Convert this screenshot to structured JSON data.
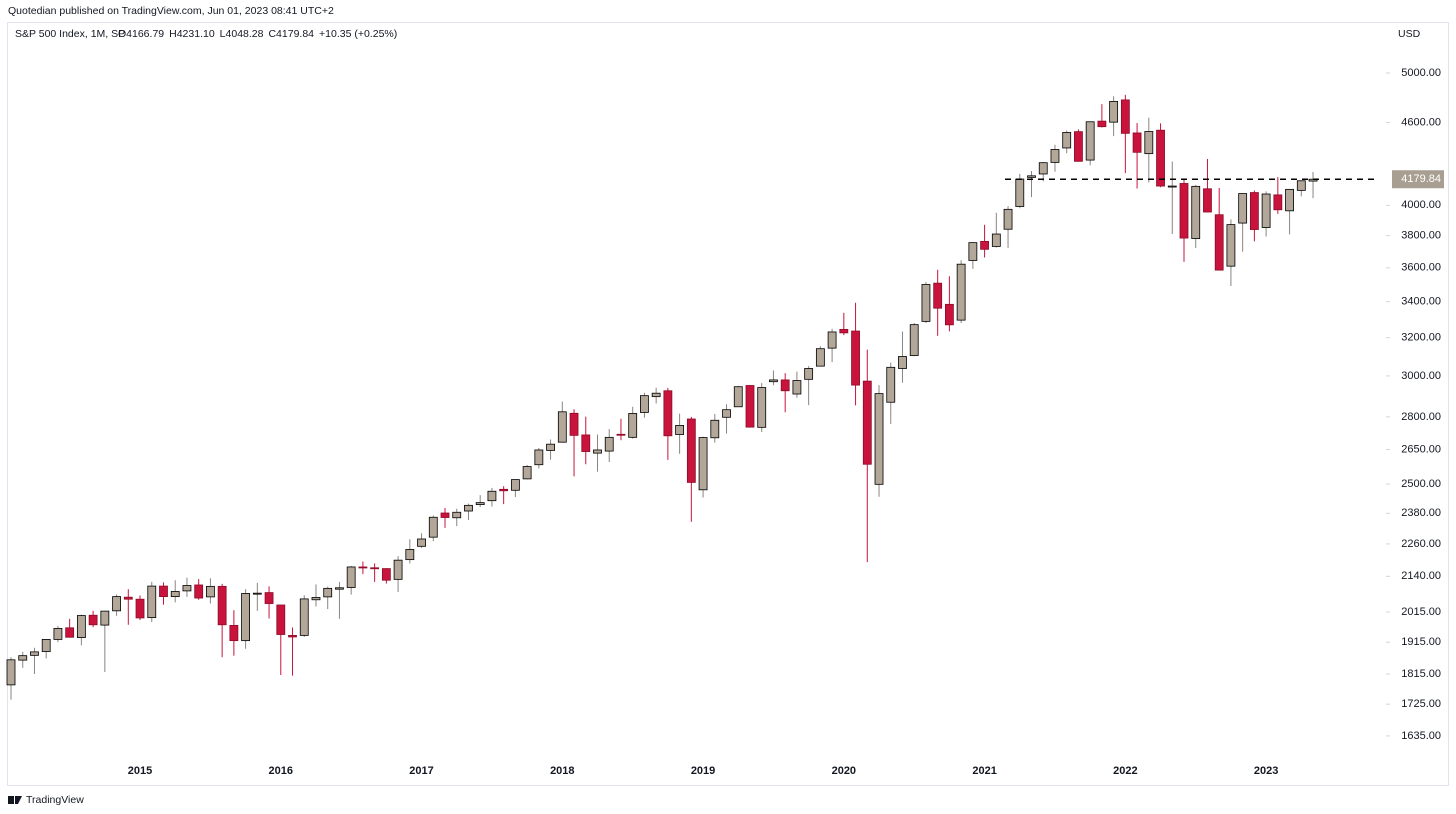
{
  "publisher": "Quotedian published on TradingView.com, Jun 01, 2023 08:41 UTC+2",
  "footer": "TradingView",
  "chart_data": {
    "type": "candlestick",
    "title": "S&P 500 Index, 1M, SP",
    "ohlc_text": [
      "O4166.79",
      "H4231.10",
      "L4048.28",
      "C4179.84",
      "+10.35 (+0.25%)"
    ],
    "currency": "USD",
    "log_scale": true,
    "up_color": "#b2a798",
    "down_color": "#c8143c",
    "hline": 4180,
    "last_price_label": "4179.84",
    "ylim": [
      1578,
      5467
    ],
    "yticks": [
      {
        "value": 1635,
        "label": "1635.00"
      },
      {
        "value": 1725,
        "label": "1725.00"
      },
      {
        "value": 1815,
        "label": "1815.00"
      },
      {
        "value": 1915,
        "label": "1915.00"
      },
      {
        "value": 2015,
        "label": "2015.00"
      },
      {
        "value": 2140,
        "label": "2140.00"
      },
      {
        "value": 2260,
        "label": "2260.00"
      },
      {
        "value": 2380,
        "label": "2380.00"
      },
      {
        "value": 2500,
        "label": "2500.00"
      },
      {
        "value": 2650,
        "label": "2650.00"
      },
      {
        "value": 2800,
        "label": "2800.00"
      },
      {
        "value": 3000,
        "label": "3000.00"
      },
      {
        "value": 3200,
        "label": "3200.00"
      },
      {
        "value": 3400,
        "label": "3400.00"
      },
      {
        "value": 3600,
        "label": "3600.00"
      },
      {
        "value": 3800,
        "label": "3800.00"
      },
      {
        "value": 4000,
        "label": "4000.00"
      },
      {
        "value": 4600,
        "label": "4600.00"
      },
      {
        "value": 5000,
        "label": "5000.00"
      }
    ],
    "categories": [
      null,
      null,
      null,
      null,
      null,
      null,
      null,
      null,
      null,
      null,
      null,
      "2015",
      null,
      null,
      null,
      null,
      null,
      null,
      null,
      null,
      null,
      null,
      null,
      "2016",
      null,
      null,
      null,
      null,
      null,
      null,
      null,
      null,
      null,
      null,
      null,
      "2017",
      null,
      null,
      null,
      null,
      null,
      null,
      null,
      null,
      null,
      null,
      null,
      "2018",
      null,
      null,
      null,
      null,
      null,
      null,
      null,
      null,
      null,
      null,
      null,
      "2019",
      null,
      null,
      null,
      null,
      null,
      null,
      null,
      null,
      null,
      null,
      null,
      "2020",
      null,
      null,
      null,
      null,
      null,
      null,
      null,
      null,
      null,
      null,
      null,
      "2021",
      null,
      null,
      null,
      null,
      null,
      null,
      null,
      null,
      null,
      null,
      null,
      "2022",
      null,
      null,
      null,
      null,
      null,
      null,
      null,
      null,
      null,
      null,
      null,
      "2023",
      null,
      null,
      null,
      null
    ],
    "open": [
      1782,
      1858,
      1873,
      1885,
      1924,
      1962,
      1930,
      2004,
      1971,
      2019,
      2066,
      2059,
      1996,
      2105,
      2068,
      2088,
      2109,
      2067,
      2104,
      1970,
      1920,
      2080,
      2082,
      2039,
      1937,
      1937,
      2057,
      2067,
      2094,
      2100,
      2174,
      2171,
      2168,
      2129,
      2201,
      2251,
      2286,
      2381,
      2362,
      2389,
      2415,
      2431,
      2478,
      2474,
      2522,
      2583,
      2646,
      2683,
      2817,
      2716,
      2634,
      2643,
      2719,
      2705,
      2821,
      2897,
      2926,
      2718,
      2790,
      2476,
      2703,
      2798,
      2848,
      2952,
      2751,
      2971,
      2980,
      2910,
      2983,
      3050,
      3144,
      3245,
      3236,
      2974,
      2499,
      2870,
      3038,
      3105,
      3289,
      3508,
      3385,
      3296,
      3645,
      3764,
      3732,
      3842,
      3992,
      4193,
      4217,
      4300,
      4406,
      4529,
      4317,
      4610,
      4602,
      4778,
      4519,
      4364,
      4540,
      4131,
      4150,
      3782,
      4113,
      3937,
      3610,
      3882,
      4087,
      3853,
      4071,
      3963,
      4102,
      4166.79
    ],
    "high": [
      1867,
      1884,
      1897,
      1925,
      1968,
      1992,
      2006,
      2019,
      2019,
      2076,
      2094,
      2072,
      2120,
      2118,
      2126,
      2135,
      2130,
      2133,
      2113,
      2021,
      2094,
      2117,
      2104,
      2039,
      1963,
      2073,
      2111,
      2103,
      2120,
      2178,
      2194,
      2187,
      2169,
      2214,
      2278,
      2301,
      2371,
      2401,
      2398,
      2419,
      2454,
      2484,
      2491,
      2520,
      2582,
      2657,
      2695,
      2873,
      2836,
      2801,
      2718,
      2743,
      2791,
      2848,
      2916,
      2941,
      2940,
      2815,
      2800,
      2708,
      2814,
      2860,
      2950,
      2955,
      2964,
      3028,
      3014,
      3022,
      3050,
      3154,
      3248,
      3337,
      3394,
      3136,
      2954,
      3068,
      3233,
      3280,
      3515,
      3588,
      3549,
      3646,
      3760,
      3871,
      3950,
      3994,
      4218,
      4238,
      4302,
      4430,
      4538,
      4546,
      4608,
      4744,
      4808,
      4819,
      4595,
      4637,
      4593,
      4307,
      4178,
      4140,
      4325,
      4119,
      3906,
      4080,
      4101,
      4095,
      4195,
      4111,
      4171,
      4231.1
    ],
    "low": [
      1738,
      1834,
      1815,
      1863,
      1915,
      1930,
      1905,
      1964,
      1821,
      2002,
      1972,
      1988,
      1981,
      2040,
      2048,
      2067,
      2057,
      2044,
      1867,
      1872,
      1894,
      2019,
      1993,
      1812,
      1810,
      1932,
      2034,
      2025,
      1992,
      2075,
      2148,
      2120,
      2114,
      2084,
      2187,
      2245,
      2271,
      2322,
      2329,
      2353,
      2405,
      2407,
      2417,
      2446,
      2520,
      2567,
      2605,
      2683,
      2533,
      2585,
      2553,
      2595,
      2692,
      2699,
      2796,
      2864,
      2604,
      2631,
      2346,
      2444,
      2681,
      2722,
      2848,
      2750,
      2729,
      2953,
      2822,
      2892,
      2856,
      3050,
      3071,
      3214,
      2855,
      2192,
      2447,
      2767,
      2966,
      3102,
      3280,
      3210,
      3234,
      3280,
      3594,
      3663,
      3725,
      3723,
      3980,
      4056,
      4165,
      4233,
      4367,
      4305,
      4279,
      4561,
      4495,
      4223,
      4115,
      4157,
      4124,
      3811,
      3636,
      3722,
      3954,
      3584,
      3491,
      3699,
      3764,
      3795,
      3943,
      3809,
      4061,
      4048.28
    ],
    "close": [
      1859,
      1872,
      1884,
      1924,
      1960,
      1931,
      2003,
      1972,
      2018,
      2068,
      2059,
      1995,
      2105,
      2068,
      2086,
      2107,
      2063,
      2104,
      1972,
      1920,
      2079,
      2080,
      2044,
      1940,
      1932,
      2060,
      2065,
      2097,
      2099,
      2174,
      2171,
      2168,
      2126,
      2199,
      2239,
      2279,
      2364,
      2363,
      2384,
      2412,
      2423,
      2470,
      2472,
      2519,
      2575,
      2648,
      2674,
      2824,
      2714,
      2641,
      2648,
      2705,
      2718,
      2816,
      2902,
      2914,
      2712,
      2760,
      2507,
      2704,
      2784,
      2834,
      2946,
      2752,
      2942,
      2980,
      2926,
      2977,
      3038,
      3141,
      3231,
      3226,
      2954,
      2585,
      2912,
      3044,
      3100,
      3271,
      3500,
      3363,
      3270,
      3622,
      3756,
      3714,
      3811,
      3973,
      4181,
      4204,
      4298,
      4395,
      4523,
      4308,
      4605,
      4567,
      4766,
      4516,
      4374,
      4530,
      4132,
      4132,
      3785,
      4130,
      3955,
      3586,
      3872,
      4080,
      3840,
      4077,
      3970,
      4109,
      4169,
      4179.84
    ]
  }
}
